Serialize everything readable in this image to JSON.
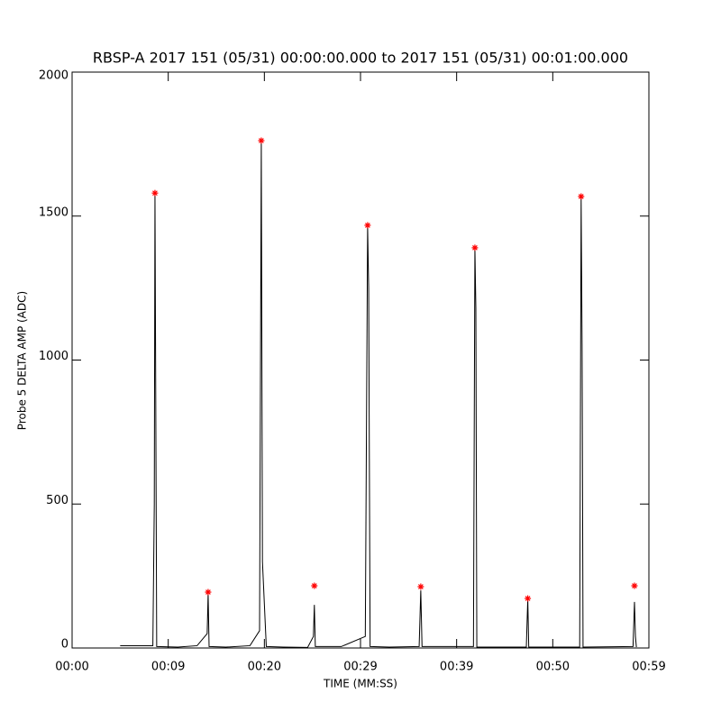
{
  "chart_data": {
    "type": "line",
    "title": "RBSP-A 2017 151 (05/31) 00:00:00.000 to 2017 151 (05/31) 00:01:00.000",
    "x_label": "TIME (MM:SS)",
    "y_label": "Probe 5 DELTA AMP (ADC)",
    "xlim": [
      0,
      60
    ],
    "ylim": [
      0,
      2000
    ],
    "xticks": [
      {
        "value": 0,
        "label": "00:00"
      },
      {
        "value": 10,
        "label": "00:09"
      },
      {
        "value": 20,
        "label": "00:20"
      },
      {
        "value": 30,
        "label": "00:29"
      },
      {
        "value": 40,
        "label": "00:39"
      },
      {
        "value": 50,
        "label": "00:50"
      },
      {
        "value": 60,
        "label": "00:59"
      }
    ],
    "yticks": [
      0,
      500,
      1000,
      1500,
      2000
    ],
    "series": [
      {
        "color": "#000000",
        "x": [
          5.0,
          8.4,
          8.55,
          8.62,
          8.7,
          8.8,
          11,
          13,
          14.05,
          14.15,
          14.25,
          16,
          18.5,
          19.5,
          19.68,
          19.8,
          20.2,
          22,
          24.5,
          25.1,
          25.2,
          25.3,
          28,
          30.5,
          30.74,
          30.85,
          31,
          33,
          36.1,
          36.27,
          36.4,
          41.75,
          41.9,
          42.0,
          42.1,
          47.25,
          47.4,
          47.5,
          52.8,
          52.95,
          53.05,
          53.15,
          58.35,
          58.5,
          58.6,
          58.7
        ],
        "values": [
          8,
          8,
          500,
          1580,
          880,
          5,
          3,
          8,
          50,
          190,
          5,
          3,
          8,
          60,
          1760,
          300,
          5,
          3,
          2,
          40,
          150,
          5,
          5,
          40,
          1465,
          1250,
          5,
          3,
          5,
          200,
          5,
          5,
          1390,
          1180,
          3,
          3,
          170,
          3,
          3,
          1565,
          1050,
          3,
          5,
          160,
          40,
          3
        ]
      },
      {
        "color": "#ff0000",
        "marker": "asterisk",
        "x": [
          8.62,
          14.15,
          19.68,
          25.2,
          30.74,
          36.27,
          41.9,
          47.4,
          52.95,
          58.5
        ],
        "values": [
          1580,
          194,
          1762,
          216,
          1468,
          213,
          1390,
          172,
          1568,
          216
        ]
      }
    ]
  }
}
